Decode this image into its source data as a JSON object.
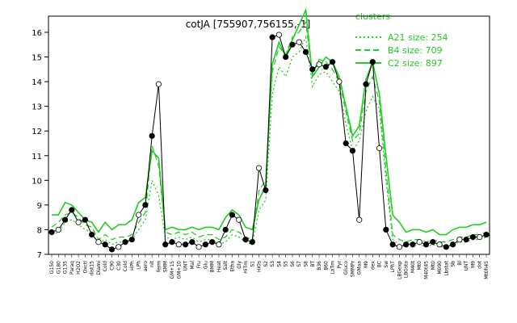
{
  "chart_data": {
    "type": "line",
    "title": "cotJA [755907,756155,-1]",
    "xlabel": "",
    "ylabel": "",
    "ylim": [
      7,
      16
    ],
    "yticks": [
      7,
      8,
      9,
      10,
      11,
      12,
      13,
      14,
      15,
      16
    ],
    "categories": [
      "G150",
      "G180",
      "G135",
      "Paraq",
      "H2O2",
      "Oxctl",
      "dist15",
      "Diami",
      "Cold",
      "C90",
      "C30",
      "Cold",
      "HPh",
      "LPh",
      "aero",
      "nit",
      "ferm",
      "SMM",
      "GM+15",
      "GM+10",
      "UNT",
      "Mal",
      "Fru",
      "Glu",
      "BMM",
      "Heat",
      "Salt",
      "Etha",
      "Gly",
      "HiTm",
      "S1",
      "HiOs",
      "S2",
      "S3",
      "S4",
      "S5",
      "S6",
      "S7",
      "S8",
      "BT",
      "B36",
      "B60",
      "LaTm",
      "Pyr",
      "Gluco",
      "SMMPr",
      "GMaa",
      "M9",
      "dex",
      "BC",
      "Sw",
      "LPhT",
      "LBGexp",
      "LBGsta",
      "M40t",
      "Mt0",
      "M40t45",
      "Mt0",
      "M090",
      "Lbstat",
      "Sb",
      "Bl",
      "UNT",
      "M9",
      "dot",
      "Mt0h45"
    ],
    "series": [
      {
        "name": "A21 size: 254",
        "style": "dotted",
        "values": [
          7.8,
          7.9,
          8.3,
          8.4,
          8.2,
          8.0,
          7.9,
          7.4,
          7.6,
          7.4,
          7.5,
          7.5,
          7.6,
          8.0,
          8.4,
          10.0,
          9.4,
          7.7,
          7.6,
          7.7,
          7.6,
          7.7,
          7.5,
          7.6,
          7.6,
          7.4,
          7.5,
          7.8,
          7.7,
          7.5,
          7.4,
          8.8,
          9.2,
          13.5,
          14.6,
          14.2,
          15.0,
          15.2,
          15.8,
          13.8,
          14.3,
          14.4,
          14.0,
          13.6,
          12.3,
          11.2,
          11.6,
          12.8,
          13.4,
          12.9,
          10.0,
          7.6,
          7.4,
          7.3,
          7.4,
          7.4,
          7.3,
          7.4,
          7.3,
          7.3,
          7.4,
          7.5,
          7.5,
          7.6,
          7.6,
          7.7
        ]
      },
      {
        "name": "B4 size: 709",
        "style": "dashed",
        "values": [
          8.1,
          8.3,
          8.6,
          8.7,
          8.5,
          8.2,
          8.1,
          7.6,
          7.8,
          7.6,
          7.7,
          7.7,
          7.8,
          8.3,
          8.7,
          11.4,
          10.6,
          7.9,
          7.8,
          7.9,
          7.8,
          7.9,
          7.7,
          7.8,
          7.8,
          7.6,
          7.7,
          8.0,
          7.9,
          7.7,
          7.6,
          9.6,
          10.0,
          14.4,
          15.4,
          15.1,
          15.8,
          16.0,
          16.4,
          14.3,
          14.9,
          14.8,
          14.5,
          14.0,
          12.8,
          11.6,
          11.9,
          13.6,
          14.2,
          13.2,
          10.4,
          7.8,
          7.6,
          7.5,
          7.6,
          7.6,
          7.5,
          7.6,
          7.5,
          7.5,
          7.6,
          7.7,
          7.7,
          7.8,
          7.8,
          7.9
        ]
      },
      {
        "name": "C2 size: 897",
        "style": "solid",
        "values": [
          8.6,
          8.6,
          9.1,
          9.0,
          8.7,
          8.4,
          8.3,
          7.9,
          8.3,
          8.0,
          8.2,
          8.2,
          8.4,
          9.1,
          9.3,
          11.2,
          10.9,
          8.0,
          8.1,
          8.0,
          8.0,
          8.1,
          8.0,
          8.1,
          8.1,
          8.0,
          8.5,
          8.8,
          8.6,
          8.1,
          8.0,
          9.2,
          9.8,
          14.7,
          15.6,
          15.0,
          15.7,
          16.3,
          16.9,
          14.2,
          14.6,
          15.0,
          14.8,
          14.2,
          13.0,
          11.8,
          12.2,
          14.1,
          14.8,
          13.5,
          11.0,
          8.6,
          8.3,
          7.9,
          8.0,
          8.0,
          7.9,
          8.0,
          7.8,
          7.8,
          8.0,
          8.1,
          8.1,
          8.2,
          8.2,
          8.3
        ]
      }
    ],
    "points": [
      7.9,
      8.0,
      8.4,
      8.8,
      8.3,
      8.4,
      7.8,
      7.5,
      7.4,
      7.2,
      7.3,
      7.5,
      7.6,
      8.6,
      9.0,
      11.8,
      13.9,
      7.4,
      7.5,
      7.4,
      7.4,
      7.5,
      7.3,
      7.4,
      7.5,
      7.4,
      8.0,
      8.6,
      8.4,
      7.6,
      7.5,
      10.5,
      9.6,
      15.8,
      15.9,
      15.0,
      15.5,
      15.6,
      15.2,
      14.5,
      14.7,
      14.6,
      14.8,
      14.0,
      11.5,
      11.2,
      8.4,
      13.9,
      14.8,
      11.3,
      8.0,
      7.4,
      7.3,
      7.4,
      7.4,
      7.5,
      7.4,
      7.5,
      7.4,
      7.3,
      7.4,
      7.6,
      7.6,
      7.7,
      7.7,
      7.8
    ],
    "legend": {
      "title": "clusters",
      "position": "top-right"
    },
    "line_color": "#22cc22",
    "point_color": "#000000"
  }
}
